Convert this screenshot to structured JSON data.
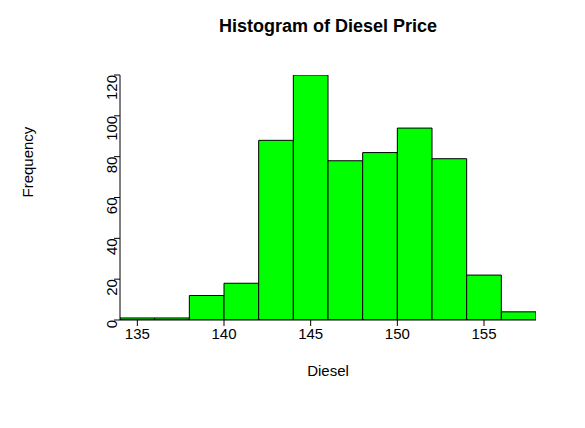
{
  "chart_data": {
    "type": "histogram",
    "title": "Histogram of Diesel Price",
    "x_label": "Diesel",
    "y_label": "Frequency",
    "bins": [
      134,
      136,
      138,
      140,
      142,
      144,
      146,
      148,
      150,
      152,
      154,
      156,
      158
    ],
    "values": [
      1,
      1,
      12,
      18,
      88,
      120,
      78,
      82,
      94,
      79,
      22,
      4
    ],
    "color": "#00ff00",
    "xlim": [
      134,
      158
    ],
    "xticks": [
      135,
      140,
      145,
      150,
      155
    ],
    "ylim": [
      0,
      120
    ],
    "yticks": [
      0,
      20,
      40,
      60,
      80,
      100,
      120
    ],
    "grid": false
  }
}
